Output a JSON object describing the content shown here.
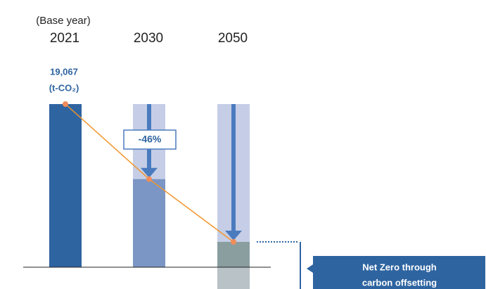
{
  "chart_data": {
    "type": "bar",
    "base_label": "(Base year)",
    "categories": [
      "2021",
      "2030",
      "2050"
    ],
    "values": [
      19067,
      10296,
      2959
    ],
    "value_labels": [
      "19,067",
      null,
      null
    ],
    "unit": "(t-CO₂)",
    "offset_values": [
      null,
      null,
      -2548
    ],
    "colors": [
      "#2e64a0",
      "#7b96c5",
      "#8a9ea0"
    ],
    "offset_color": "#b9c2c6",
    "target_color": "#c5cee6",
    "line_color": "#f0962e",
    "ylim": [
      -2548,
      19067
    ],
    "reduction_label": "-46%",
    "net_zero_label": [
      "Net Zero through",
      "carbon offsetting"
    ]
  }
}
